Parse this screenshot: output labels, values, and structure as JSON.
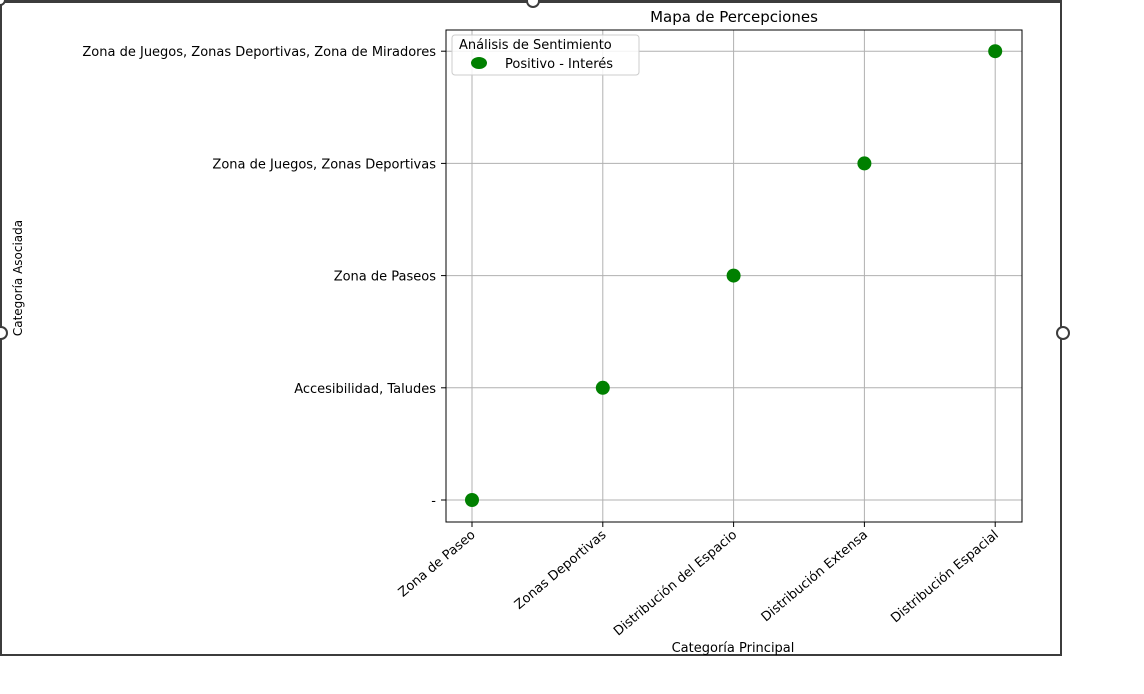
{
  "chart_data": {
    "type": "scatter",
    "title": "Mapa de Percepciones",
    "xlabel": "Categoría Principal",
    "ylabel": "Categoría Asociada",
    "x_categories": [
      "Zona de Paseo",
      "Zonas Deportivas",
      "Distribución del Espacio",
      "Distribución Extensa",
      "Distribución Espacial"
    ],
    "y_categories": [
      "-",
      "Accesibilidad, Taludes",
      "Zona de Paseos",
      "Zona de Juegos, Zonas Deportivas",
      "Zona de Juegos, Zonas Deportivas, Zona de Miradores"
    ],
    "series": [
      {
        "name": "Positivo - Interés",
        "color": "#008000",
        "points": [
          {
            "x": "Zona de Paseo",
            "y": "-"
          },
          {
            "x": "Zonas Deportivas",
            "y": "Accesibilidad, Taludes"
          },
          {
            "x": "Distribución del Espacio",
            "y": "Zona de Paseos"
          },
          {
            "x": "Distribución Extensa",
            "y": "Zona de Juegos, Zonas Deportivas"
          },
          {
            "x": "Distribución Espacial",
            "y": "Zona de Juegos, Zonas Deportivas, Zona de Miradores"
          }
        ]
      }
    ],
    "legend": {
      "title": "Análisis de Sentimiento",
      "placement": "top-left"
    },
    "grid": true
  }
}
